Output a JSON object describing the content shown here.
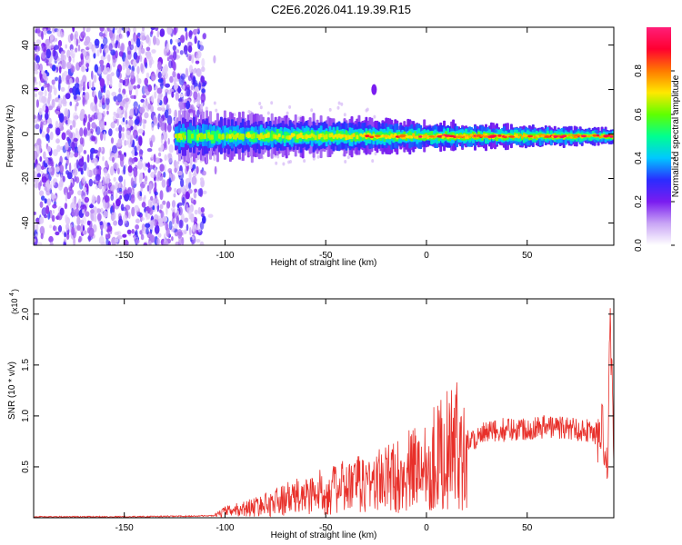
{
  "title": "C2E6.2026.041.19.39.R15",
  "chart_data": [
    {
      "type": "heatmap",
      "title": "C2E6.2026.041.19.39.R15",
      "xlabel": "Height of straight line (km)",
      "ylabel": "Frequency (Hz)",
      "xlim": [
        -195,
        93
      ],
      "ylim": [
        -50,
        48
      ],
      "x_ticks": [
        -150,
        -100,
        -50,
        0,
        50
      ],
      "y_ticks": [
        -40,
        -20,
        0,
        20,
        40
      ],
      "colorbar": {
        "label": "Normalized spectral amplitude",
        "range": [
          0,
          1
        ],
        "ticks": [
          "0.0",
          "0.2",
          "0.4",
          "0.6",
          "0.8"
        ],
        "tick_values": [
          0.0,
          0.2,
          0.4,
          0.6,
          0.8
        ],
        "colors": [
          "#ffffff",
          "#c9a5f5",
          "#7a1cf0",
          "#2a2cff",
          "#00c8ff",
          "#00ff90",
          "#5fff00",
          "#ffe800",
          "#ff7a00",
          "#ff0030",
          "#ff1e78"
        ]
      },
      "regions": [
        {
          "x_range": [
            -195,
            -110
          ],
          "y_range": [
            -50,
            48
          ],
          "amplitude": 0.12,
          "description": "scattered noise"
        },
        {
          "x_range": [
            -125,
            93
          ],
          "y_center": -1,
          "y_halfwidth": [
            10,
            3
          ],
          "amplitude": [
            0.25,
            0.85
          ]
        },
        {
          "x_range": [
            -28,
            -24
          ],
          "y_range": [
            18,
            22
          ],
          "amplitude": 0.15
        }
      ]
    },
    {
      "type": "line",
      "xlabel": "Height of straight line (km)",
      "ylabel": "SNR (10 * v/v)",
      "y_multiplier": "(x10^4)",
      "xlim": [
        -195,
        93
      ],
      "ylim": [
        0,
        2.15
      ],
      "x_ticks": [
        -150,
        -100,
        -50,
        0,
        50
      ],
      "y_ticks": [
        0.5,
        1.0,
        1.5,
        2.0
      ],
      "y_tick_labels": [
        "0.5",
        "1.0",
        "1.5",
        "2.0"
      ],
      "line_color": "#e8302a",
      "trend": {
        "x": [
          -195,
          -150,
          -120,
          -105,
          -100,
          -90,
          -80,
          -70,
          -60,
          -50,
          -40,
          -30,
          -20,
          -10,
          0,
          10,
          20,
          30,
          40,
          50,
          60,
          70,
          80,
          88,
          90,
          91,
          93
        ],
        "y": [
          0.01,
          0.01,
          0.015,
          0.02,
          0.06,
          0.09,
          0.13,
          0.18,
          0.22,
          0.26,
          0.3,
          0.34,
          0.38,
          0.44,
          0.55,
          0.66,
          0.75,
          0.83,
          0.87,
          0.88,
          0.9,
          0.88,
          0.86,
          0.8,
          0.3,
          2.12,
          0.8
        ]
      }
    }
  ]
}
